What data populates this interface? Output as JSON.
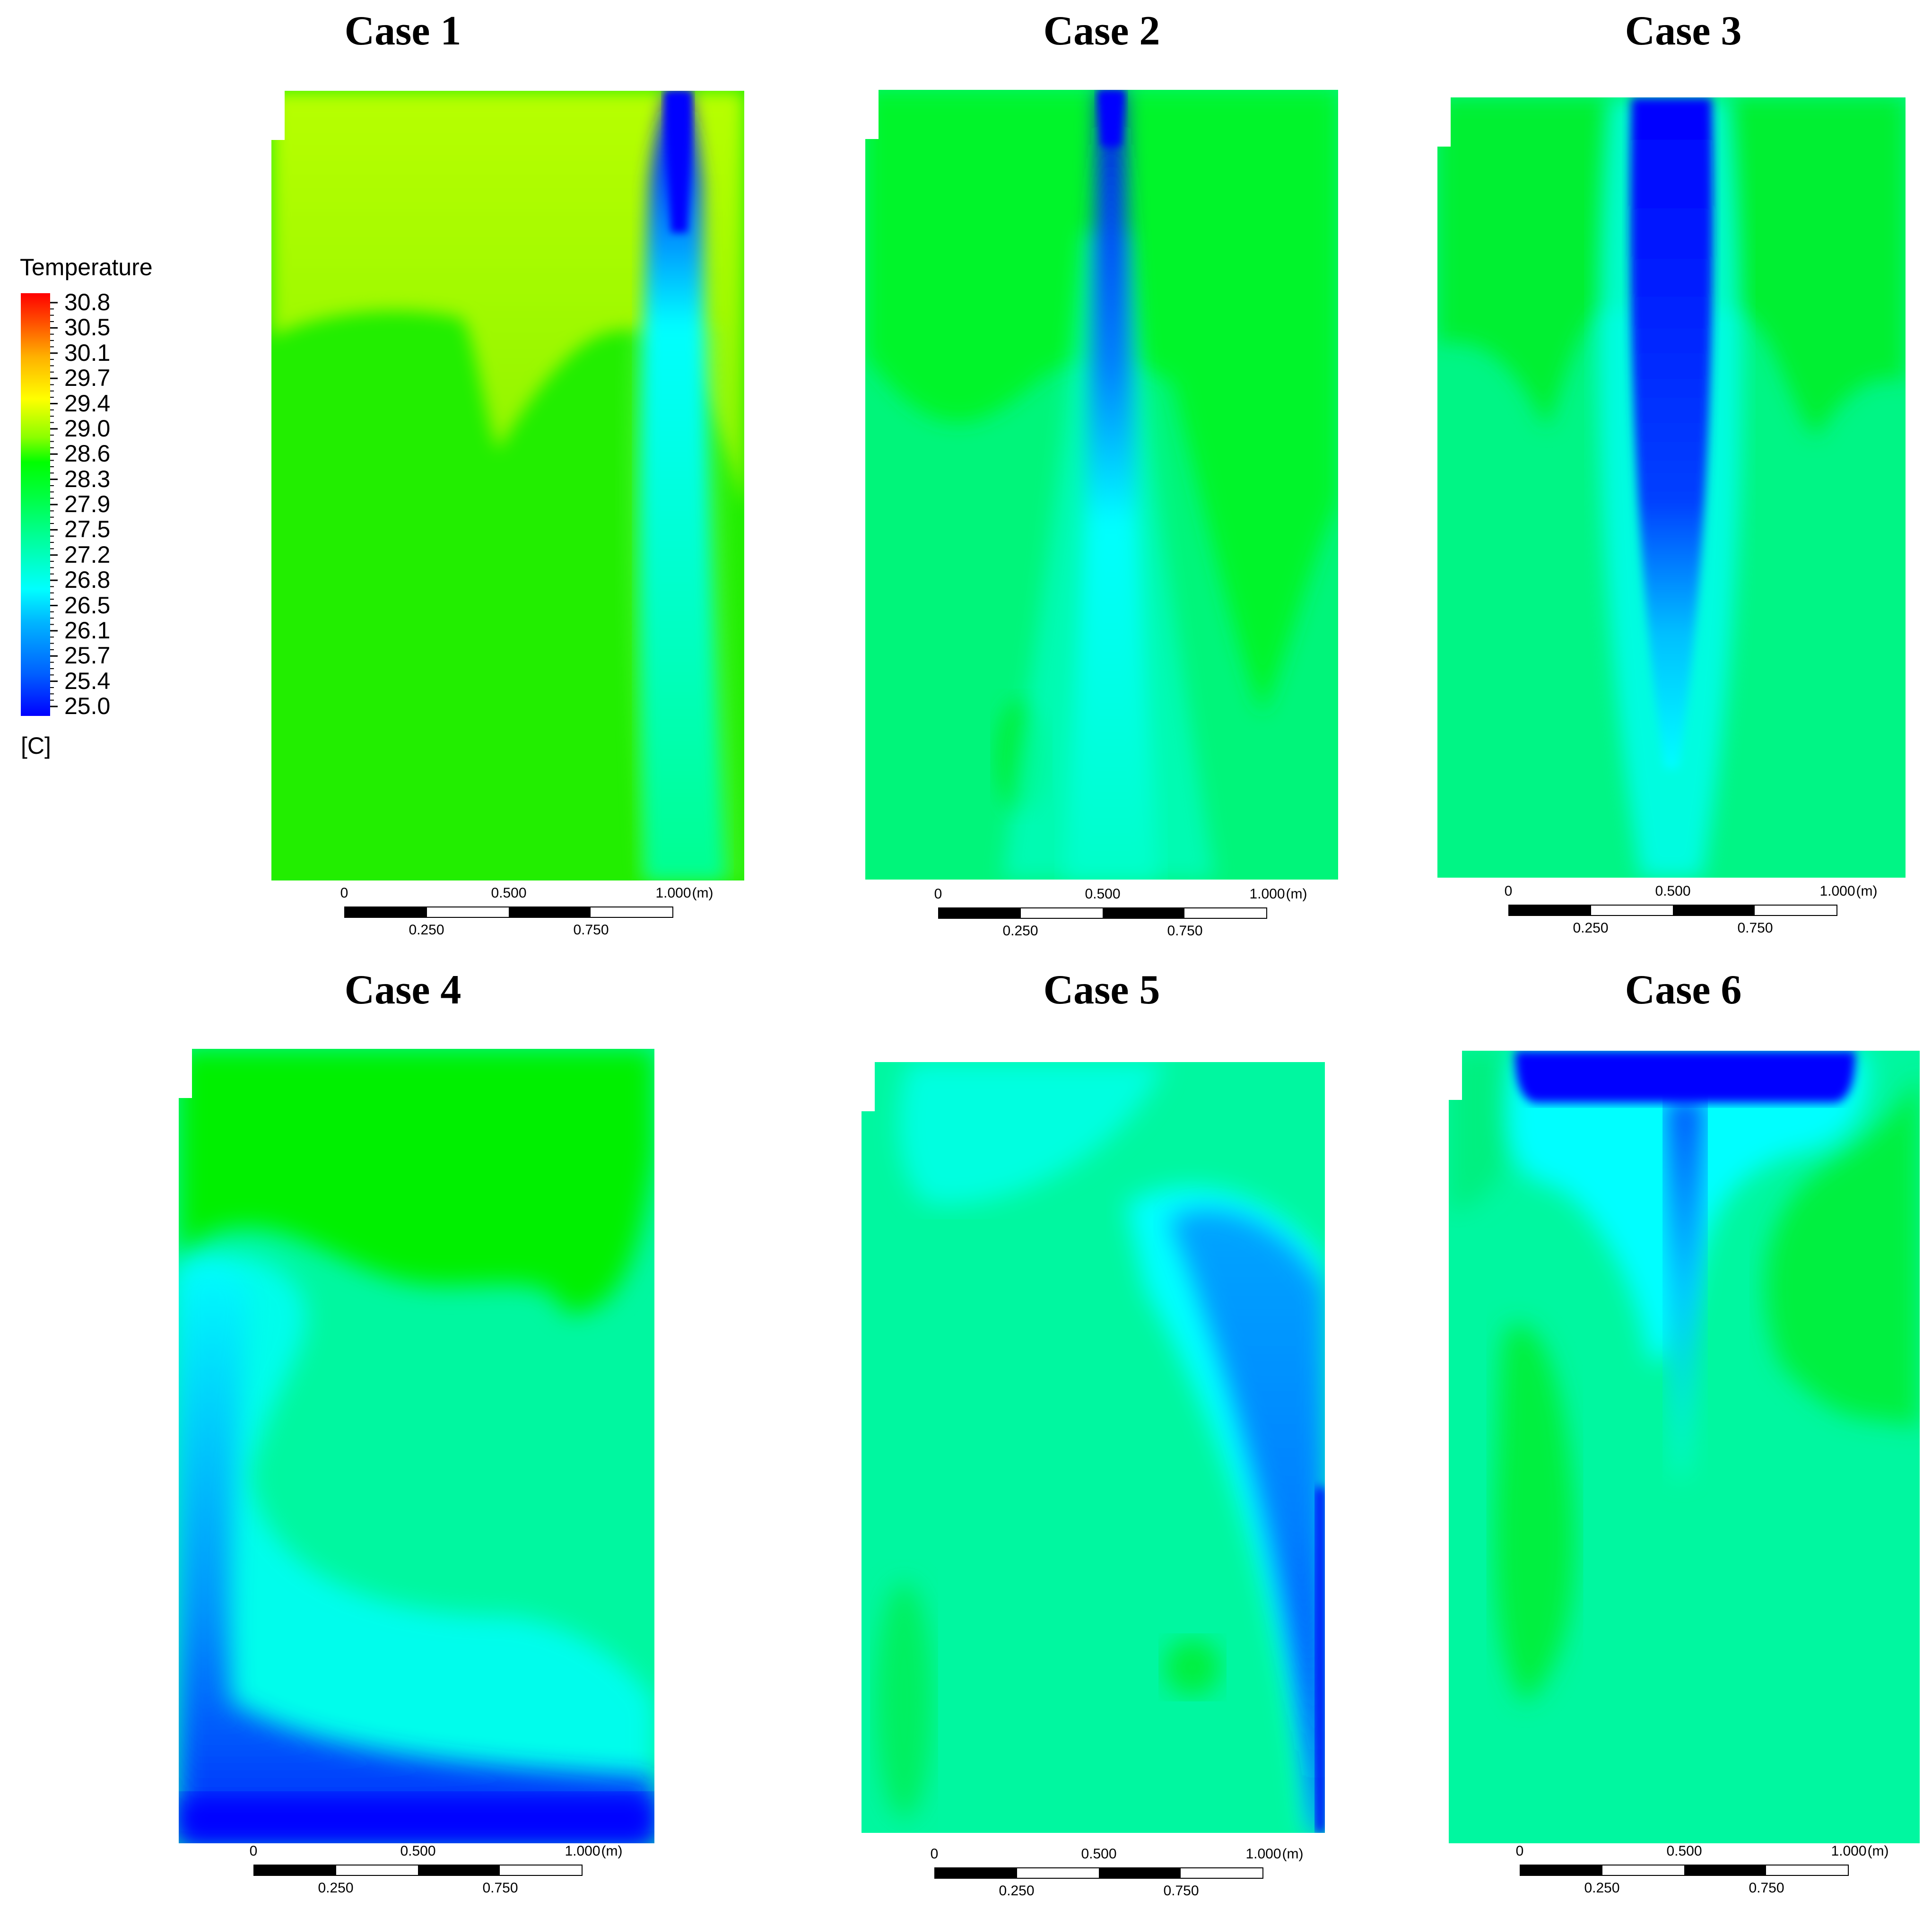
{
  "legend": {
    "title": "Temperature",
    "unit": "[C]",
    "labels": [
      "30.8",
      "30.5",
      "30.1",
      "29.7",
      "29.4",
      "29.0",
      "28.6",
      "28.3",
      "27.9",
      "27.5",
      "27.2",
      "26.8",
      "26.5",
      "26.1",
      "25.7",
      "25.4",
      "25.0"
    ],
    "min": 25.0,
    "max": 30.8,
    "colormap": [
      "#0000ff",
      "#00b4ff",
      "#00ffff",
      "#00ff9a",
      "#00ff00",
      "#ffff00",
      "#ff0000"
    ]
  },
  "scale_bar": {
    "top_labels": [
      "0",
      "0.500",
      "1.000",
      "(m)"
    ],
    "bottom_labels": [
      "0.250",
      "0.750"
    ]
  },
  "cases": [
    {
      "title": "Case 1",
      "background": "#1aef1e",
      "inlet": "ceiling-center-right",
      "plume": "narrow cold jet descending from ceiling vent"
    },
    {
      "title": "Case 2",
      "background": "#00f52a",
      "inlet": "ceiling-center",
      "plume": "jet spreading downward with cyan fan"
    },
    {
      "title": "Case 3",
      "background": "#00f22e",
      "inlet": "ceiling-center-wide",
      "plume": "wide cold column full height"
    },
    {
      "title": "Case 4",
      "background": "#00f7a0",
      "inlet": "floor",
      "plume": "cold layer along floor and left wall"
    },
    {
      "title": "Case 5",
      "background": "#00f7a0",
      "inlet": "right-wall",
      "plume": "cold arc along right wall"
    },
    {
      "title": "Case 6",
      "background": "#00f7a0",
      "inlet": "ceiling-wide",
      "plume": "wide cold band under ceiling with central drop"
    }
  ],
  "colors": {
    "blue": "#0000ff",
    "cyan": "#00ffff",
    "aqua_green": "#00ff9a",
    "green": "#00ff00",
    "yellow_green": "#b8ff00"
  }
}
